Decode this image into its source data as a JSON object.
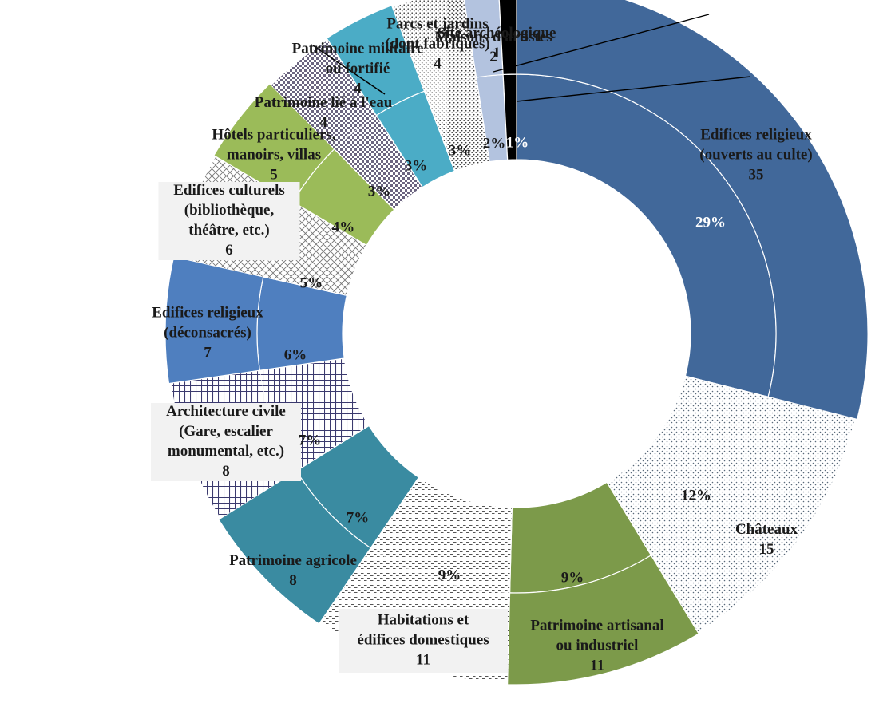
{
  "chart_data": {
    "type": "pie",
    "style": "exploded donut, two rings",
    "categories": [
      "Edifices religieux (ouverts au culte)",
      "Châteaux",
      "Patrimoine artisanal ou industriel",
      "Habitations et édifices domestiques",
      "Patrimoine agricole",
      "Architecture civile (Gare, escalier monumental, etc.)",
      "Edifices religieux (déconsacrés)",
      "Edifices culturels (bibliothèque, théâtre, etc.)",
      "Hôtels particuliers, manoirs, villas",
      "Patrimoine lié à l'eau",
      "Patrimoine militaire ou fortifié",
      "Parcs et jardins (dont fabriques)",
      "Maisons d'artistes",
      "Site archéologique"
    ],
    "values": [
      35,
      15,
      11,
      11,
      8,
      8,
      7,
      6,
      5,
      4,
      4,
      4,
      2,
      1
    ],
    "percent_labels": [
      "29%",
      "12%",
      "9%",
      "9%",
      "7%",
      "7%",
      "6%",
      "5%",
      "4%",
      "3%",
      "3%",
      "3%",
      "2%",
      "1%"
    ],
    "outer_labels": [
      {
        "lines": [
          "Edifices religieux",
          "(ouverts au culte)"
        ],
        "value": "35"
      },
      {
        "lines": [
          "Châteaux"
        ],
        "value": "15"
      },
      {
        "lines": [
          "Patrimoine artisanal",
          "ou industriel"
        ],
        "value": "11"
      },
      {
        "lines": [
          "Habitations et",
          "édifices domestiques"
        ],
        "value": "11"
      },
      {
        "lines": [
          "Patrimoine agricole"
        ],
        "value": "8"
      },
      {
        "lines": [
          "Architecture civile",
          "(Gare, escalier",
          "monumental, etc.)"
        ],
        "value": "8"
      },
      {
        "lines": [
          "Edifices religieux",
          "(déconsacrés)"
        ],
        "value": "7"
      },
      {
        "lines": [
          "Edifices culturels",
          "(bibliothèque,",
          "théâtre, etc.)"
        ],
        "value": "6"
      },
      {
        "lines": [
          "Hôtels particuliers,",
          "manoirs, villas"
        ],
        "value": "5"
      },
      {
        "lines": [
          "Patrimoine lié à l'eau"
        ],
        "value": "4"
      },
      {
        "lines": [
          "Patrimoine militaire",
          "ou fortifié"
        ],
        "value": "4"
      },
      {
        "lines": [
          "Parcs et jardins",
          "(dont fabriques)"
        ],
        "value": "4"
      },
      {
        "lines": [
          "Maisons d'artistes"
        ],
        "value": "2"
      },
      {
        "lines": [
          "Site archéologique"
        ],
        "value": "1"
      }
    ],
    "colors": [
      "#41689a",
      "#ffffff",
      "#7c9a4a",
      "#ffffff",
      "#3a8ba1",
      "#ffffff",
      "#4f7fbf",
      "#ffffff",
      "#9bbb59",
      "#ffffff",
      "#4bacc6",
      "#ffffff",
      "#b3c3df",
      "#000000"
    ],
    "patterns": [
      "solid",
      "dots",
      "solid",
      "hstripes",
      "solid",
      "grid",
      "solid",
      "diamond",
      "solid",
      "checker",
      "solid",
      "fine-dots",
      "solid",
      "solid"
    ],
    "exploded": [
      true,
      false,
      true,
      false,
      true,
      false,
      true,
      false,
      true,
      false,
      true,
      false,
      true,
      true
    ],
    "legend": "none"
  }
}
